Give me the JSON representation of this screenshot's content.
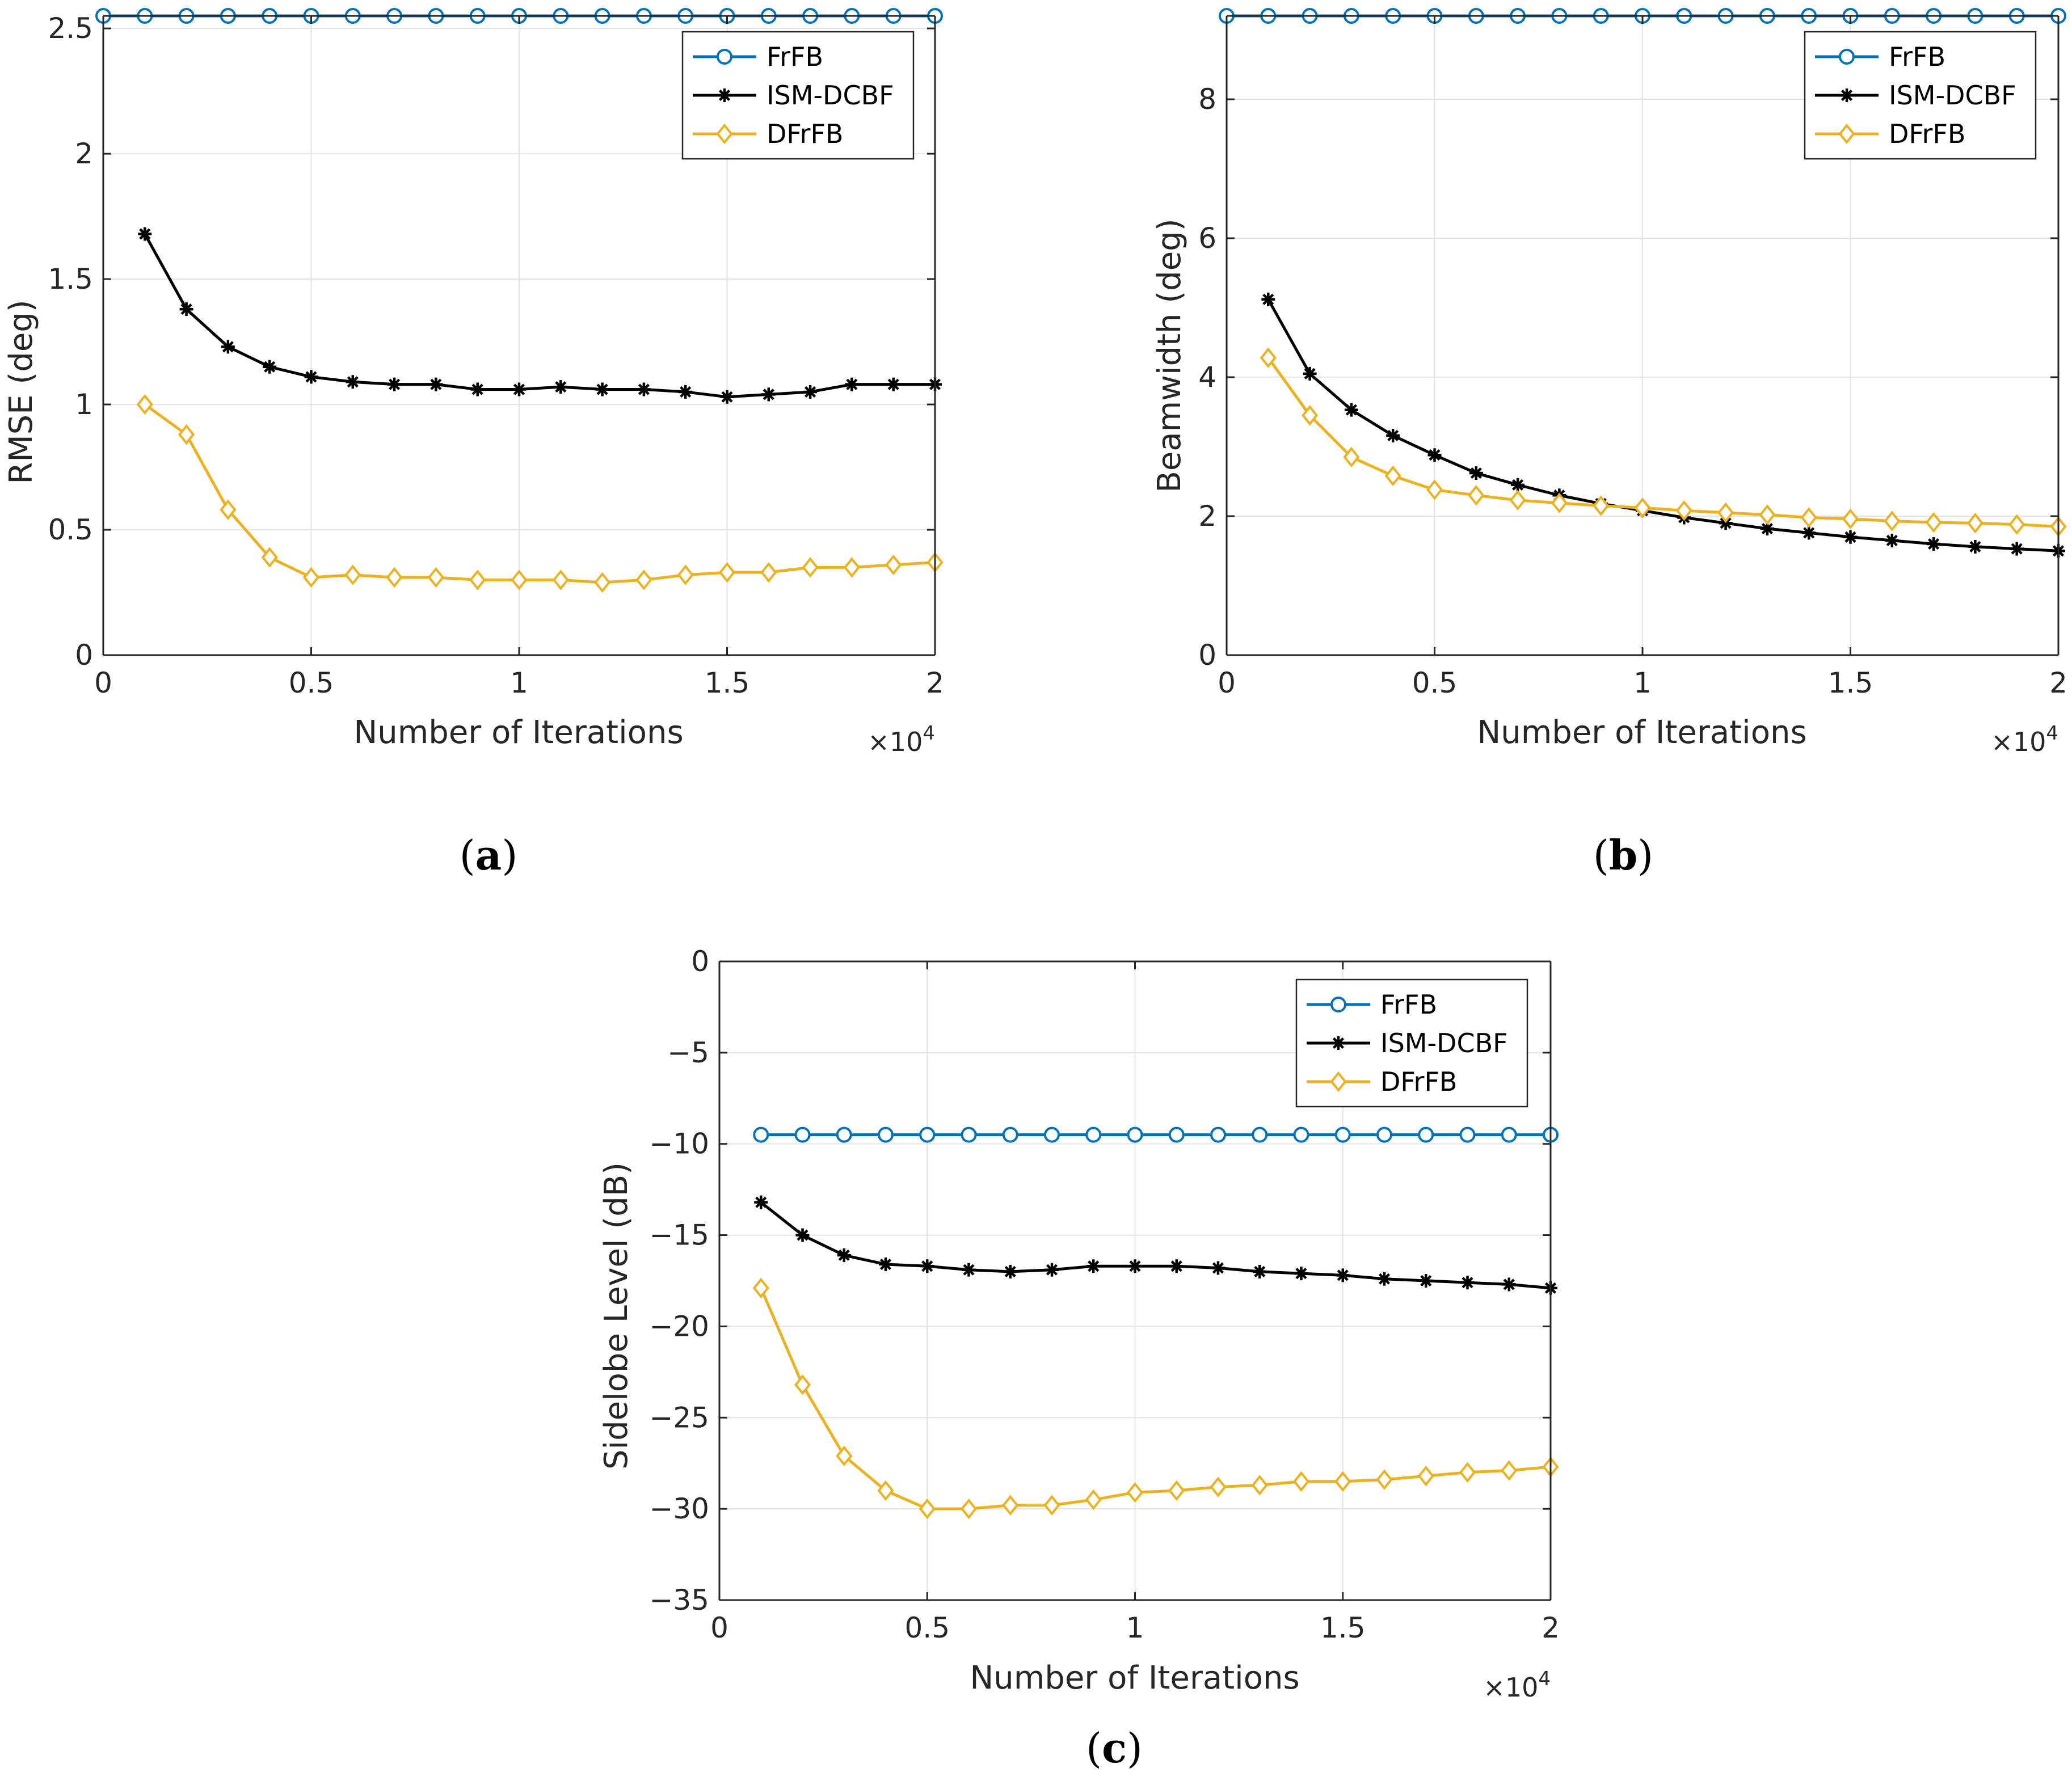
{
  "colors": {
    "frfb": "#0072BD",
    "ism_dcbf": "#000000",
    "dfrfb": "#EDB120",
    "grid": "#E3E3E3",
    "axis": "#262626"
  },
  "chart_data": [
    {
      "id": "a",
      "type": "line",
      "caption_letter": "a",
      "xlabel": "Number of Iterations",
      "ylabel": "RMSE (deg)",
      "x_multiplier": {
        "base": "×10",
        "exponent": "4"
      },
      "xlim": [
        0,
        2
      ],
      "ylim": [
        0,
        2.55
      ],
      "xticks": [
        0,
        0.5,
        1,
        1.5,
        2
      ],
      "xtick_labels": [
        "0",
        "0.5",
        "1",
        "1.5",
        "2"
      ],
      "yticks": [
        0,
        0.5,
        1,
        1.5,
        2,
        2.5
      ],
      "ytick_labels": [
        "0",
        "0.5",
        "1",
        "1.5",
        "2",
        "2.5"
      ],
      "grid": true,
      "legend_position": "top-right",
      "series": [
        {
          "name": "FrFB",
          "marker": "circle",
          "color_key": "frfb",
          "x": [
            0,
            0.1,
            0.2,
            0.3,
            0.4,
            0.5,
            0.6,
            0.7,
            0.8,
            0.9,
            1.0,
            1.1,
            1.2,
            1.3,
            1.4,
            1.5,
            1.6,
            1.7,
            1.8,
            1.9,
            2.0
          ],
          "y": [
            2.55,
            2.55,
            2.55,
            2.55,
            2.55,
            2.55,
            2.55,
            2.55,
            2.55,
            2.55,
            2.55,
            2.55,
            2.55,
            2.55,
            2.55,
            2.55,
            2.55,
            2.55,
            2.55,
            2.55,
            2.55
          ]
        },
        {
          "name": "ISM-DCBF",
          "marker": "asterisk",
          "color_key": "ism_dcbf",
          "x": [
            0.1,
            0.2,
            0.3,
            0.4,
            0.5,
            0.6,
            0.7,
            0.8,
            0.9,
            1.0,
            1.1,
            1.2,
            1.3,
            1.4,
            1.5,
            1.6,
            1.7,
            1.8,
            1.9,
            2.0
          ],
          "y": [
            1.68,
            1.38,
            1.23,
            1.15,
            1.11,
            1.09,
            1.08,
            1.08,
            1.06,
            1.06,
            1.07,
            1.06,
            1.06,
            1.05,
            1.03,
            1.04,
            1.05,
            1.08,
            1.08,
            1.08
          ]
        },
        {
          "name": "DFrFB",
          "marker": "diamond",
          "color_key": "dfrfb",
          "x": [
            0.1,
            0.2,
            0.3,
            0.4,
            0.5,
            0.6,
            0.7,
            0.8,
            0.9,
            1.0,
            1.1,
            1.2,
            1.3,
            1.4,
            1.5,
            1.6,
            1.7,
            1.8,
            1.9,
            2.0
          ],
          "y": [
            1.0,
            0.88,
            0.58,
            0.39,
            0.31,
            0.32,
            0.31,
            0.31,
            0.3,
            0.3,
            0.3,
            0.29,
            0.3,
            0.32,
            0.33,
            0.33,
            0.35,
            0.35,
            0.36,
            0.37
          ]
        }
      ]
    },
    {
      "id": "b",
      "type": "line",
      "caption_letter": "b",
      "xlabel": "Number of Iterations",
      "ylabel": "Beamwidth (deg)",
      "x_multiplier": {
        "base": "×10",
        "exponent": "4"
      },
      "xlim": [
        0,
        2
      ],
      "ylim": [
        0,
        9.2
      ],
      "xticks": [
        0,
        0.5,
        1,
        1.5,
        2
      ],
      "xtick_labels": [
        "0",
        "0.5",
        "1",
        "1.5",
        "2"
      ],
      "yticks": [
        0,
        2,
        4,
        6,
        8
      ],
      "ytick_labels": [
        "0",
        "2",
        "4",
        "6",
        "8"
      ],
      "grid": true,
      "legend_position": "top-right",
      "series": [
        {
          "name": "FrFB",
          "marker": "circle",
          "color_key": "frfb",
          "x": [
            0,
            0.1,
            0.2,
            0.3,
            0.4,
            0.5,
            0.6,
            0.7,
            0.8,
            0.9,
            1.0,
            1.1,
            1.2,
            1.3,
            1.4,
            1.5,
            1.6,
            1.7,
            1.8,
            1.9,
            2.0
          ],
          "y": [
            9.2,
            9.2,
            9.2,
            9.2,
            9.2,
            9.2,
            9.2,
            9.2,
            9.2,
            9.2,
            9.2,
            9.2,
            9.2,
            9.2,
            9.2,
            9.2,
            9.2,
            9.2,
            9.2,
            9.2,
            9.2
          ]
        },
        {
          "name": "ISM-DCBF",
          "marker": "asterisk",
          "color_key": "ism_dcbf",
          "x": [
            0.1,
            0.2,
            0.3,
            0.4,
            0.5,
            0.6,
            0.7,
            0.8,
            0.9,
            1.0,
            1.1,
            1.2,
            1.3,
            1.4,
            1.5,
            1.6,
            1.7,
            1.8,
            1.9,
            2.0
          ],
          "y": [
            5.12,
            4.05,
            3.53,
            3.16,
            2.88,
            2.62,
            2.45,
            2.3,
            2.18,
            2.08,
            1.98,
            1.9,
            1.82,
            1.76,
            1.7,
            1.65,
            1.6,
            1.56,
            1.53,
            1.5
          ]
        },
        {
          "name": "DFrFB",
          "marker": "diamond",
          "color_key": "dfrfb",
          "x": [
            0.1,
            0.2,
            0.3,
            0.4,
            0.5,
            0.6,
            0.7,
            0.8,
            0.9,
            1.0,
            1.1,
            1.2,
            1.3,
            1.4,
            1.5,
            1.6,
            1.7,
            1.8,
            1.9,
            2.0
          ],
          "y": [
            4.28,
            3.45,
            2.85,
            2.58,
            2.38,
            2.3,
            2.23,
            2.19,
            2.15,
            2.12,
            2.08,
            2.05,
            2.02,
            1.98,
            1.96,
            1.93,
            1.91,
            1.9,
            1.88,
            1.85
          ]
        }
      ]
    },
    {
      "id": "c",
      "type": "line",
      "caption_letter": "c",
      "xlabel": "Number of Iterations",
      "ylabel": "Sidelobe Level (dB)",
      "x_multiplier": {
        "base": "×10",
        "exponent": "4"
      },
      "xlim": [
        0,
        2
      ],
      "ylim": [
        -35,
        0
      ],
      "xticks": [
        0,
        0.5,
        1,
        1.5,
        2
      ],
      "xtick_labels": [
        "0",
        "0.5",
        "1",
        "1.5",
        "2"
      ],
      "yticks": [
        -35,
        -30,
        -25,
        -20,
        -15,
        -10,
        -5,
        0
      ],
      "ytick_labels": [
        "−35",
        "−30",
        "−25",
        "−20",
        "−15",
        "−10",
        "−5",
        "0"
      ],
      "grid": true,
      "legend_position": "top-right",
      "series": [
        {
          "name": "FrFB",
          "marker": "circle",
          "color_key": "frfb",
          "x": [
            0.1,
            0.2,
            0.3,
            0.4,
            0.5,
            0.6,
            0.7,
            0.8,
            0.9,
            1.0,
            1.1,
            1.2,
            1.3,
            1.4,
            1.5,
            1.6,
            1.7,
            1.8,
            1.9,
            2.0
          ],
          "y": [
            -9.5,
            -9.5,
            -9.5,
            -9.5,
            -9.5,
            -9.5,
            -9.5,
            -9.5,
            -9.5,
            -9.5,
            -9.5,
            -9.5,
            -9.5,
            -9.5,
            -9.5,
            -9.5,
            -9.5,
            -9.5,
            -9.5,
            -9.5
          ]
        },
        {
          "name": "ISM-DCBF",
          "marker": "asterisk",
          "color_key": "ism_dcbf",
          "x": [
            0.1,
            0.2,
            0.3,
            0.4,
            0.5,
            0.6,
            0.7,
            0.8,
            0.9,
            1.0,
            1.1,
            1.2,
            1.3,
            1.4,
            1.5,
            1.6,
            1.7,
            1.8,
            1.9,
            2.0
          ],
          "y": [
            -13.2,
            -15.0,
            -16.1,
            -16.6,
            -16.7,
            -16.9,
            -17.0,
            -16.9,
            -16.7,
            -16.7,
            -16.7,
            -16.8,
            -17.0,
            -17.1,
            -17.2,
            -17.4,
            -17.5,
            -17.6,
            -17.7,
            -17.9
          ]
        },
        {
          "name": "DFrFB",
          "marker": "diamond",
          "color_key": "dfrfb",
          "x": [
            0.1,
            0.2,
            0.3,
            0.4,
            0.5,
            0.6,
            0.7,
            0.8,
            0.9,
            1.0,
            1.1,
            1.2,
            1.3,
            1.4,
            1.5,
            1.6,
            1.7,
            1.8,
            1.9,
            2.0
          ],
          "y": [
            -17.9,
            -23.2,
            -27.1,
            -29.0,
            -30.0,
            -30.0,
            -29.8,
            -29.8,
            -29.5,
            -29.1,
            -29.0,
            -28.8,
            -28.7,
            -28.5,
            -28.5,
            -28.4,
            -28.2,
            -28.0,
            -27.9,
            -27.7
          ]
        }
      ]
    }
  ]
}
